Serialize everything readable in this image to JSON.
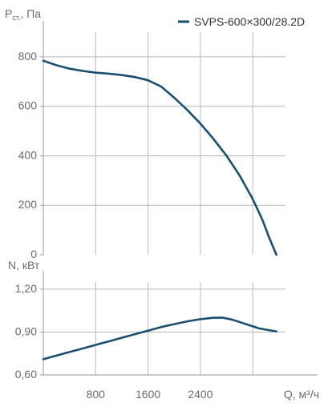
{
  "chart_data": [
    {
      "type": "line",
      "ylabel": "P",
      "ylabel_sub": "ст.",
      "ylabel_suffix": ", Па",
      "ylim": [
        0,
        900
      ],
      "yticks": [
        0,
        200,
        400,
        600,
        800
      ],
      "ytick_labels": [
        "0",
        "200",
        "400",
        "600",
        "800"
      ],
      "xlim": [
        0,
        3700
      ],
      "xgrid": [
        800,
        1600,
        2400,
        3200
      ],
      "grid": true,
      "legend": "top-right",
      "series": [
        {
          "name": "SVPS-600×300/28.2D",
          "color": "#1b4f72",
          "x": [
            0,
            200,
            400,
            600,
            800,
            1000,
            1200,
            1400,
            1600,
            1800,
            2000,
            2200,
            2400,
            2600,
            2800,
            3000,
            3200,
            3350,
            3450,
            3560
          ],
          "y": [
            784,
            766,
            752,
            743,
            736,
            732,
            726,
            718,
            705,
            680,
            635,
            585,
            530,
            468,
            400,
            320,
            225,
            140,
            70,
            0
          ]
        }
      ]
    },
    {
      "type": "line",
      "ylabel": "N, кВт",
      "ylim": [
        0.6,
        1.25
      ],
      "yticks": [
        0.6,
        0.9,
        1.2
      ],
      "ytick_labels": [
        "0,60",
        "0,90",
        "1,20"
      ],
      "xlim": [
        0,
        3700
      ],
      "xticks": [
        800,
        1600,
        2400
      ],
      "xtick_labels": [
        "800",
        "1600",
        "2400"
      ],
      "xgrid": [
        800,
        1600,
        2400,
        3200
      ],
      "xlabel": "Q, м³/ч",
      "grid": true,
      "series": [
        {
          "name": "",
          "color": "#1b4f72",
          "x": [
            0,
            200,
            400,
            600,
            800,
            1000,
            1200,
            1400,
            1600,
            1800,
            2000,
            2200,
            2400,
            2600,
            2750,
            2900,
            3100,
            3300,
            3560
          ],
          "y": [
            0.71,
            0.735,
            0.76,
            0.785,
            0.81,
            0.835,
            0.86,
            0.885,
            0.91,
            0.935,
            0.955,
            0.975,
            0.99,
            1.0,
            1.0,
            0.985,
            0.955,
            0.925,
            0.905
          ]
        }
      ]
    }
  ]
}
